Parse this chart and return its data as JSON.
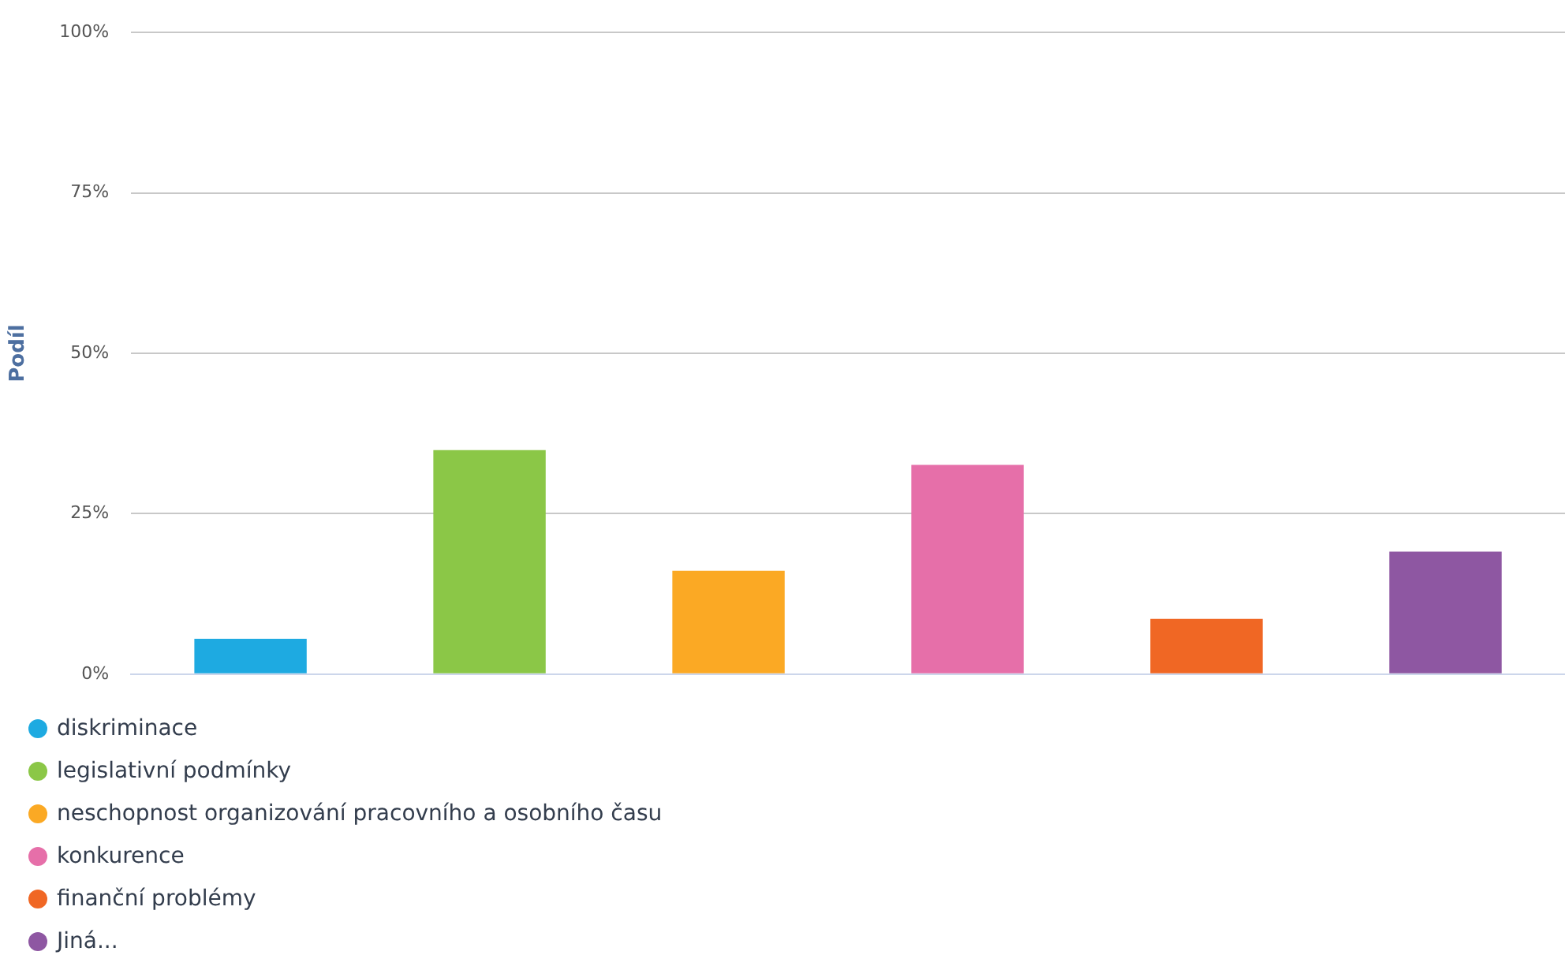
{
  "chart_data": {
    "type": "bar",
    "ylabel": "Podíl",
    "categories": [
      null,
      null,
      null,
      null,
      null,
      null
    ],
    "series": [
      {
        "name": "diskriminace",
        "color": "#1eaae1",
        "values": [
          5.5,
          null,
          null,
          null,
          null,
          null
        ]
      },
      {
        "name": "legislativní podmínky",
        "color": "#8bc747",
        "values": [
          null,
          34.9,
          null,
          null,
          null,
          null
        ]
      },
      {
        "name": "neschopnost organizování pracovního a osobního času",
        "color": "#fba924",
        "values": [
          null,
          null,
          16.1,
          null,
          null,
          null
        ]
      },
      {
        "name": "konkurence",
        "color": "#e66fa9",
        "values": [
          null,
          null,
          null,
          32.6,
          null,
          null
        ]
      },
      {
        "name": "finanční problémy",
        "color": "#f06724",
        "values": [
          null,
          null,
          null,
          null,
          8.6,
          null
        ]
      },
      {
        "name": "Jiná...",
        "color": "#8e57a2",
        "values": [
          null,
          null,
          null,
          null,
          null,
          19.1
        ]
      }
    ],
    "ylim": [
      0,
      100
    ],
    "yticks": [
      {
        "value": 0,
        "label": "0%"
      },
      {
        "value": 25,
        "label": "25%"
      },
      {
        "value": 50,
        "label": "50%"
      },
      {
        "value": 75,
        "label": "75%"
      },
      {
        "value": 100,
        "label": "100%"
      }
    ],
    "grid": "y",
    "legend": "bottom left",
    "tick_labels": "y"
  }
}
